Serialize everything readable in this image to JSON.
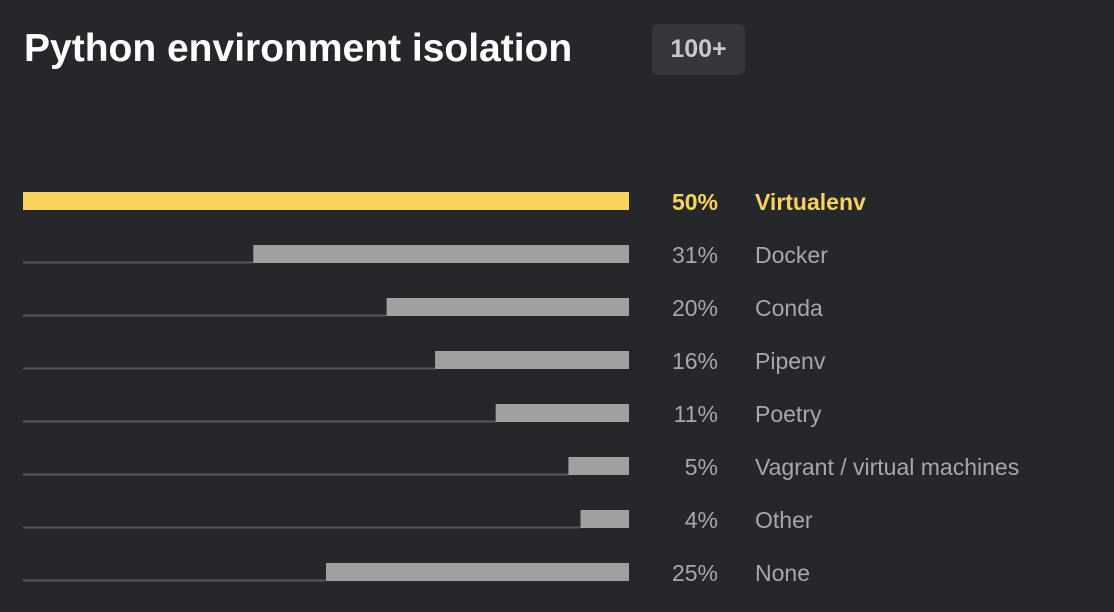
{
  "header": {
    "title": "Python environment isolation",
    "badge": "100+"
  },
  "chart_data": {
    "type": "bar",
    "orientation": "horizontal",
    "categories": [
      "Virtualenv",
      "Docker",
      "Conda",
      "Pipenv",
      "Poetry",
      "Vagrant / virtual machines",
      "Other",
      "None"
    ],
    "values": [
      50,
      31,
      20,
      16,
      11,
      5,
      4,
      25
    ],
    "value_labels": [
      "50%",
      "31%",
      "20%",
      "16%",
      "11%",
      "5%",
      "4%",
      "25%"
    ],
    "unit": "%",
    "xlim": [
      0,
      100
    ],
    "highlight_index": 0,
    "title": "Python environment isolation",
    "xlabel": "",
    "ylabel": "",
    "grid": false,
    "legend": "none"
  },
  "colors": {
    "background": "#26272b",
    "highlight_bar": "#f7d35c",
    "default_bar": "#a0a0a0",
    "track_line": "#55565b",
    "highlight_text": "#f7d35c",
    "default_text": "#a8a8ab",
    "title_text": "#ffffff",
    "badge_background": "#36373c",
    "badge_text": "#c8c8cb"
  }
}
